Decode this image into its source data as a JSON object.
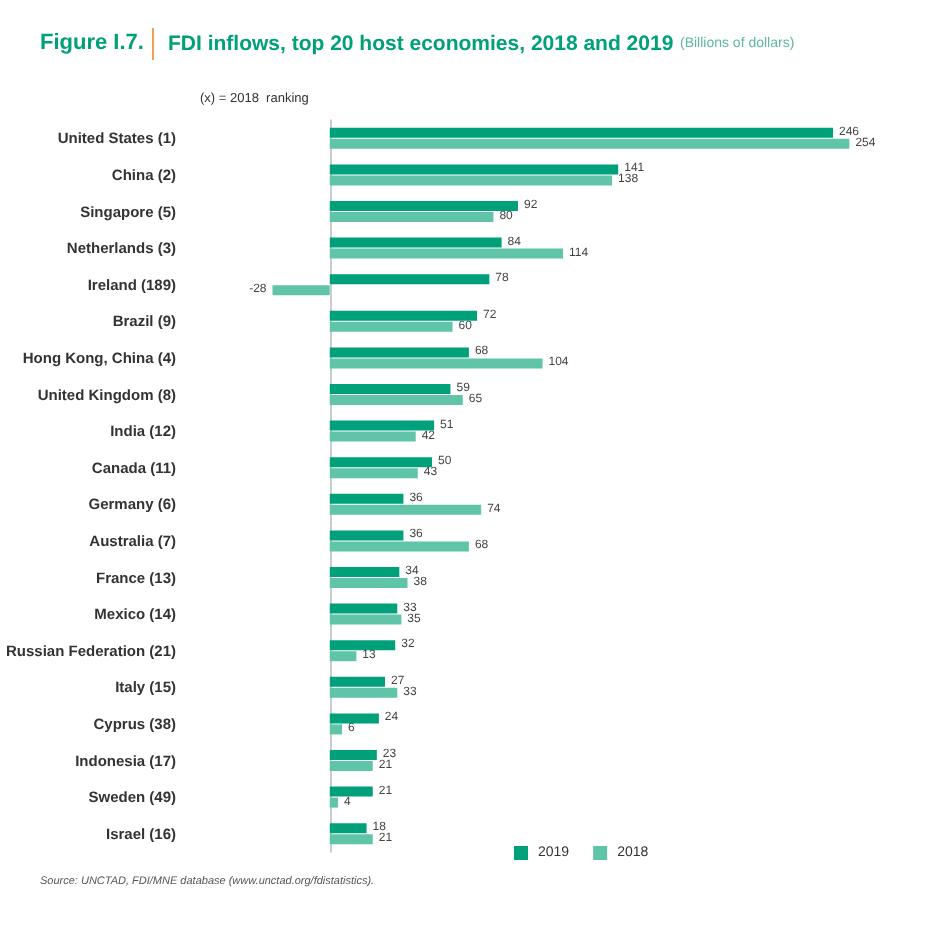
{
  "chart_data": {
    "type": "bar",
    "orientation": "horizontal",
    "title": "FDI inflows, top 20 host economies, 2018 and 2019",
    "subtitle": "(Billions of dollars)",
    "annotations": [
      "Figure I.7.",
      "(x) = 2018  ranking",
      "Source: UNCTAD, FDI/MNE database (www.unctad.org/fdistatistics)."
    ],
    "categories": [
      "United States (1)",
      "China (2)",
      "Singapore (5)",
      "Netherlands (3)",
      "Ireland (189)",
      "Brazil (9)",
      "Hong Kong, China (4)",
      "United Kingdom (8)",
      "India (12)",
      "Canada (11)",
      "Germany (6)",
      "Australia (7)",
      "France (13)",
      "Mexico (14)",
      "Russian Federation (21)",
      "Italy (15)",
      "Cyprus (38)",
      "Indonesia (17)",
      "Sweden (49)",
      "Israel (16)"
    ],
    "series": [
      {
        "name": "2019",
        "color": "#00a07a",
        "values": [
          246,
          141,
          92,
          84,
          78,
          72,
          68,
          59,
          51,
          50,
          36,
          36,
          34,
          33,
          32,
          27,
          24,
          23,
          21,
          18
        ]
      },
      {
        "name": "2018",
        "color": "#5fc4a8",
        "values": [
          254,
          138,
          80,
          114,
          -28,
          60,
          104,
          65,
          42,
          43,
          74,
          68,
          38,
          35,
          13,
          33,
          6,
          21,
          4,
          21
        ]
      }
    ],
    "data_labels": true,
    "legend": "bottom right"
  }
}
